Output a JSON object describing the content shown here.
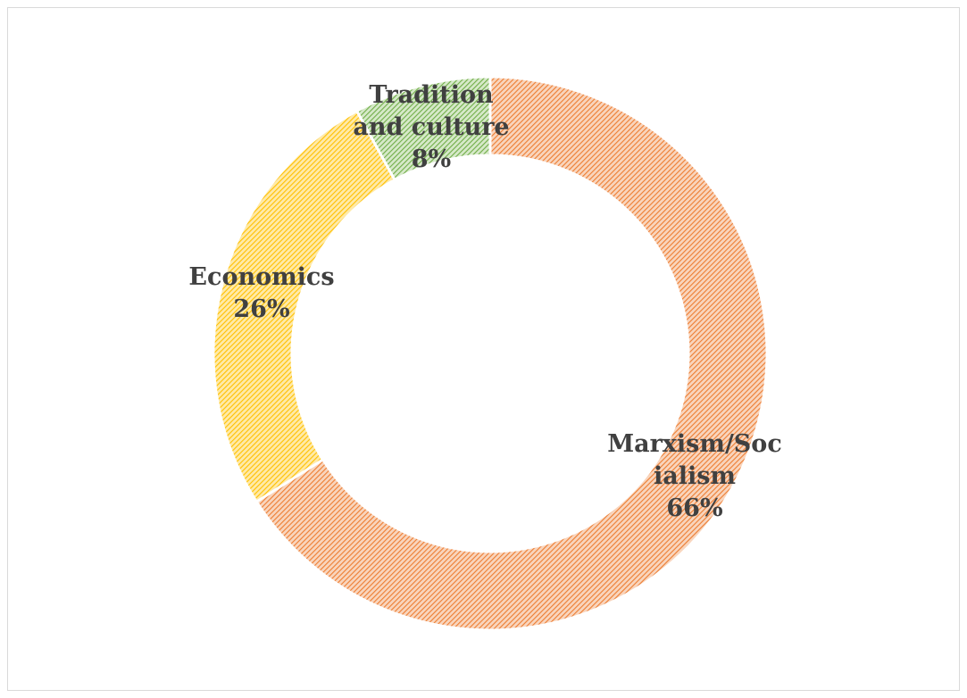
{
  "chart_data": {
    "type": "pie",
    "variant": "donut",
    "title": "",
    "start_angle_deg": 0,
    "direction": "clockwise",
    "fill_pattern": "diagonal-hatch",
    "slices": [
      {
        "label_lines": [
          "Marxism/Soc",
          "ialism"
        ],
        "label": "Marxism/Socialism",
        "value": 66,
        "value_label": "66%",
        "color": "#ed7d31",
        "pattern_bg": "#f9d5bd"
      },
      {
        "label_lines": [
          "Economics"
        ],
        "label": "Economics",
        "value": 26,
        "value_label": "26%",
        "color": "#ffc000",
        "pattern_bg": "#ffeaa8"
      },
      {
        "label_lines": [
          "Tradition",
          "and culture"
        ],
        "label": "Tradition and culture",
        "value": 8,
        "value_label": "8%",
        "color": "#70ad47",
        "pattern_bg": "#d6e9c9"
      }
    ]
  }
}
